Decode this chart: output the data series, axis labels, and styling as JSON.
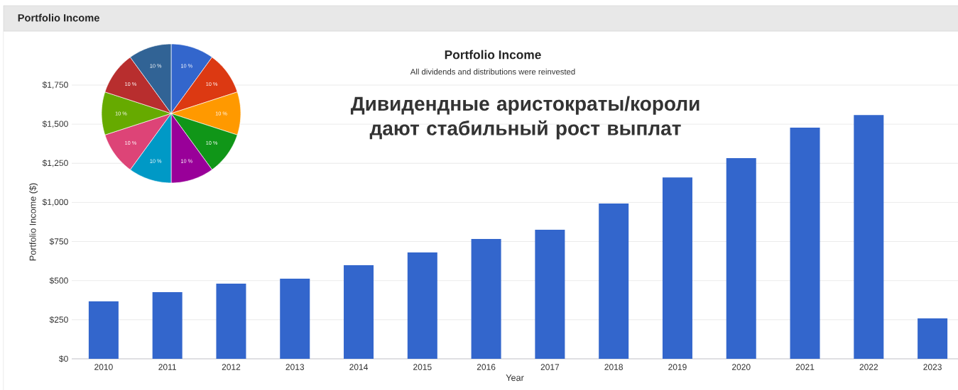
{
  "chart_data": [
    {
      "type": "bar",
      "title": "Portfolio Income",
      "subtitle": "All dividends and distributions were reinvested",
      "xlabel": "Year",
      "ylabel": "Portfolio Income ($)",
      "categories": [
        "2010",
        "2011",
        "2012",
        "2013",
        "2014",
        "2015",
        "2016",
        "2017",
        "2018",
        "2019",
        "2020",
        "2021",
        "2022",
        "2023"
      ],
      "values": [
        367,
        426,
        480,
        512,
        598,
        680,
        766,
        825,
        993,
        1160,
        1283,
        1478,
        1559,
        258
      ],
      "color": "#3366cc",
      "ylim": [
        0,
        1750
      ],
      "yticks": [
        {
          "value": 0,
          "label": "$0"
        },
        {
          "value": 250,
          "label": "$250"
        },
        {
          "value": 500,
          "label": "$500"
        },
        {
          "value": 750,
          "label": "$750"
        },
        {
          "value": 1000,
          "label": "$1,000"
        },
        {
          "value": 1250,
          "label": "$1,250"
        },
        {
          "value": 1500,
          "label": "$1,500"
        },
        {
          "value": 1750,
          "label": "$1,750"
        }
      ],
      "grid": "y",
      "annotations": [
        "Portfolio Income",
        "Дивидендные аристократы/короли дают стабильный рост выплат"
      ]
    },
    {
      "type": "pie",
      "categories": [
        null,
        null,
        null,
        null,
        null,
        null,
        null,
        null,
        null,
        null
      ],
      "values": [
        10,
        10,
        10,
        10,
        10,
        10,
        10,
        10,
        10,
        10
      ],
      "colors": [
        "#3366cc",
        "#dc3912",
        "#ff9900",
        "#109618",
        "#990099",
        "#0099c6",
        "#dd4477",
        "#66aa00",
        "#b82e2e",
        "#316395"
      ],
      "value_labels": [
        "10 %",
        "10 %",
        "10 %",
        "10 %",
        "10 %",
        "10 %",
        "10 %",
        "10 %",
        "10 %",
        "10 %"
      ]
    }
  ]
}
